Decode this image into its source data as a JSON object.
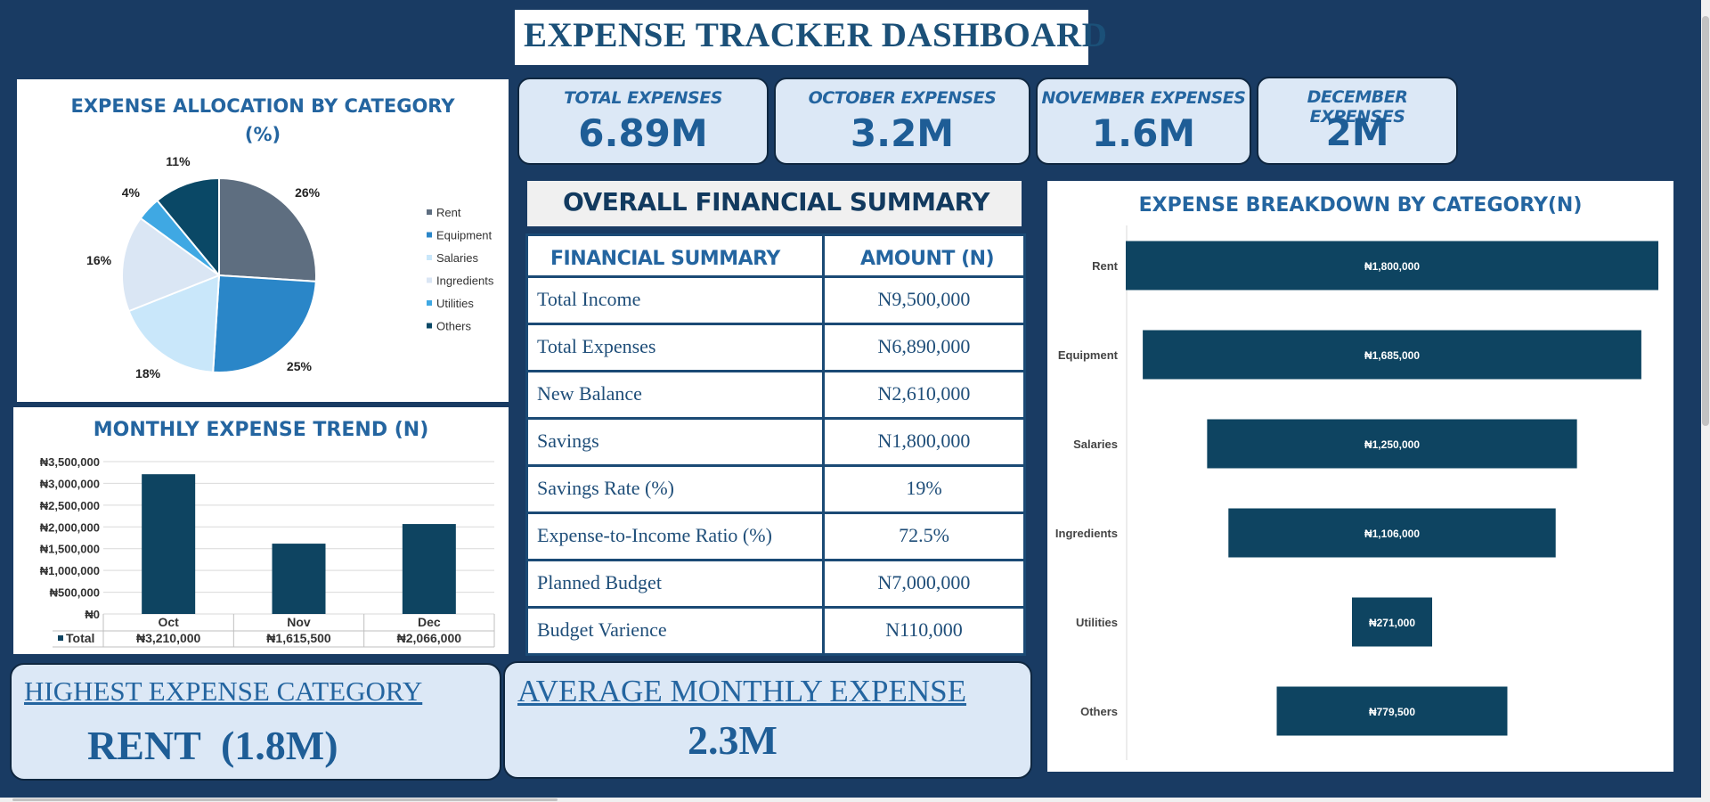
{
  "dashboard": {
    "title": "EXPENSE TRACKER DASHBOARD",
    "colors": {
      "background": "#193b63",
      "card": "#dce8f6",
      "bar": "#0e4461",
      "accent_text": "#2465a0"
    }
  },
  "kpis": [
    {
      "label": "TOTAL EXPENSES",
      "value": "6.89M"
    },
    {
      "label": "OCTOBER EXPENSES",
      "value": "3.2M"
    },
    {
      "label": "NOVEMBER EXPENSES",
      "value": "1.6M"
    },
    {
      "label": "DECEMBER EXPENSES",
      "value": "2M"
    }
  ],
  "summary": {
    "heading": "OVERALL FINANCIAL SUMMARY",
    "col_label": "FINANCIAL SUMMARY",
    "col_amount": "AMOUNT (N)",
    "rows": [
      {
        "label": "Total Income",
        "value": "N9,500,000"
      },
      {
        "label": "Total Expenses",
        "value": "N6,890,000"
      },
      {
        "label": "New Balance",
        "value": "N2,610,000"
      },
      {
        "label": "Savings",
        "value": "N1,800,000"
      },
      {
        "label": "Savings Rate (%)",
        "value": "19%"
      },
      {
        "label": "Expense-to-Income Ratio (%)",
        "value": "72.5%"
      },
      {
        "label": "Planned Budget",
        "value": "N7,000,000"
      },
      {
        "label": "Budget Varience",
        "value": "N110,000"
      }
    ]
  },
  "highlights": {
    "highest_label": "HIGHEST EXPENSE CATEGORY",
    "highest_value": "RENT  (1.8M)",
    "average_label": "AVERAGE MONTHLY EXPENSE",
    "average_value": "2.3M"
  },
  "chart_data": [
    {
      "type": "pie",
      "title": "EXPENSE ALLOCATION BY CATEGORY (%)",
      "title_lines": [
        "EXPENSE ALLOCATION BY CATEGORY",
        "(%)"
      ],
      "categories": [
        "Rent",
        "Equipment",
        "Salaries",
        "Ingredients",
        "Utilities",
        "Others"
      ],
      "values": [
        26,
        25,
        18,
        16,
        4,
        11
      ],
      "data_labels": [
        "26%",
        "25%",
        "18%",
        "16%",
        "4%",
        "11%"
      ],
      "colors": [
        "#5e6e80",
        "#2a86c8",
        "#c9e7fa",
        "#dae6f4",
        "#3fa8e3",
        "#0a4866"
      ],
      "legend": "right"
    },
    {
      "type": "bar",
      "title": "MONTHLY EXPENSE TREND (N)",
      "categories": [
        "Oct",
        "Nov",
        "Dec"
      ],
      "series": [
        {
          "name": "Total",
          "values": [
            3210000,
            1615500,
            2066000
          ]
        }
      ],
      "data_table": [
        "₦3,210,000",
        "₦1,615,500",
        "₦2,066,000"
      ],
      "yticks": [
        "₦0",
        "₦500,000",
        "₦1,000,000",
        "₦1,500,000",
        "₦2,000,000",
        "₦2,500,000",
        "₦3,000,000",
        "₦3,500,000"
      ],
      "ylim": [
        0,
        3500000
      ],
      "grid": true
    },
    {
      "type": "bar",
      "orientation": "horizontal",
      "title": "EXPENSE BREAKDOWN BY CATEGORY(N)",
      "categories": [
        "Rent",
        "Equipment",
        "Salaries",
        "Ingredients",
        "Utilities",
        "Others"
      ],
      "values": [
        1800000,
        1685000,
        1250000,
        1106000,
        271000,
        779500
      ],
      "data_labels": [
        "₦1,800,000",
        "₦1,685,000",
        "₦1,250,000",
        "₦1,106,000",
        "₦271,000",
        "₦779,500"
      ],
      "alignment": "centered"
    }
  ]
}
